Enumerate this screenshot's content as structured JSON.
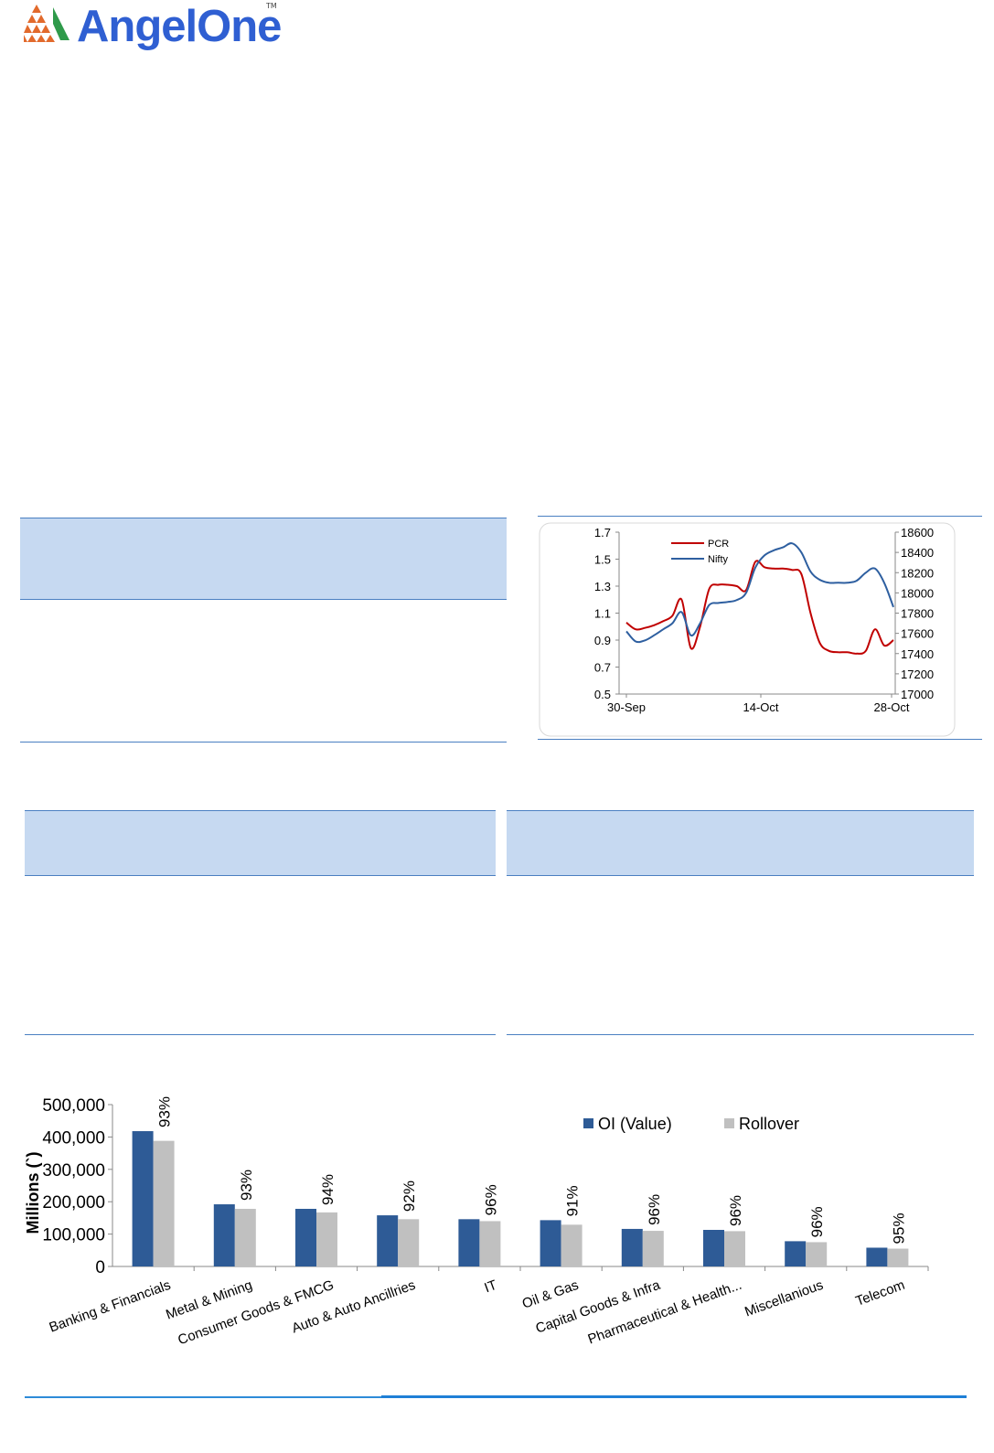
{
  "brand": {
    "name": "AngelOne",
    "tm": "TM"
  },
  "pcr_chart": {
    "chart_data": {
      "type": "line",
      "x_ticks": [
        "30-Sep",
        "14-Oct",
        "28-Oct"
      ],
      "left_axis": {
        "ylim": [
          0.5,
          1.7
        ],
        "ticks": [
          "1.7",
          "1.5",
          "1.3",
          "1.1",
          "0.9",
          "0.7",
          "0.5"
        ]
      },
      "right_axis": {
        "ylim": [
          17000,
          18600
        ],
        "ticks": [
          "18600",
          "18400",
          "18200",
          "18000",
          "17800",
          "17600",
          "17400",
          "17200",
          "17000"
        ]
      },
      "legend": [
        "PCR",
        "Nifty"
      ],
      "series": [
        {
          "name": "PCR",
          "color": "#c00000",
          "axis": "left",
          "values": [
            1.03,
            0.98,
            0.99,
            1.01,
            1.04,
            1.08,
            1.2,
            0.84,
            1.0,
            1.28,
            1.31,
            1.31,
            1.3,
            1.27,
            1.48,
            1.44,
            1.43,
            1.43,
            1.42,
            1.39,
            1.1,
            0.88,
            0.82,
            0.81,
            0.81,
            0.8,
            0.82,
            0.98,
            0.86,
            0.9
          ]
        },
        {
          "name": "Nifty",
          "color": "#2e5fa0",
          "axis": "right",
          "values": [
            17620,
            17520,
            17530,
            17580,
            17640,
            17700,
            17810,
            17580,
            17700,
            17880,
            17900,
            17910,
            17930,
            18000,
            18250,
            18370,
            18420,
            18450,
            18490,
            18400,
            18210,
            18130,
            18100,
            18100,
            18100,
            18120,
            18200,
            18240,
            18100,
            17860
          ]
        }
      ]
    }
  },
  "rollover_chart": {
    "chart_data": {
      "type": "bar",
      "ylabel": "Millions (`)",
      "ylim": [
        0,
        500000
      ],
      "y_ticks": [
        "500,000",
        "400,000",
        "300,000",
        "200,000",
        "100,000",
        "0"
      ],
      "categories": [
        "Banking & Financials",
        "Metal & Mining",
        "Consumer Goods & FMCG",
        "Auto & Auto Ancillries",
        "IT",
        "Oil & Gas",
        "Capital Goods & Infra",
        "Pharmaceutical & Health...",
        "Miscellanious",
        "Telecom"
      ],
      "series": [
        {
          "name": "OI (Value)",
          "color": "#2e5b96",
          "values": [
            418000,
            192000,
            178000,
            158000,
            146000,
            143000,
            116000,
            113000,
            78000,
            58000
          ]
        },
        {
          "name": "Rollover",
          "color": "#c0c0c0",
          "values": [
            388000,
            178000,
            167000,
            146000,
            140000,
            129000,
            110000,
            109000,
            75000,
            55000
          ]
        }
      ],
      "data_labels": [
        "93%",
        "93%",
        "94%",
        "92%",
        "96%",
        "91%",
        "96%",
        "96%",
        "96%",
        "95%"
      ],
      "legend_position": "top-right"
    }
  }
}
